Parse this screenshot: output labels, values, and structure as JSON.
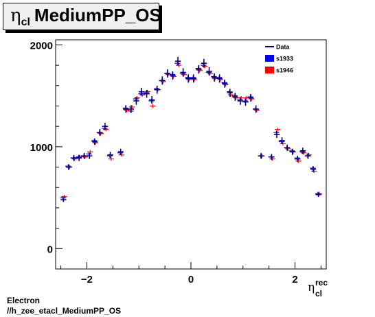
{
  "title": {
    "symbol": "η",
    "subscript": "cl",
    "text": "MediumPP_OS"
  },
  "footer": {
    "line1": "Electron",
    "line2": "//h_zee_etacl_MediumPP_OS"
  },
  "chart_data": {
    "type": "scatter",
    "xlabel": {
      "symbol": "η",
      "subscript": "cl",
      "superscript": "rec"
    },
    "ylabel": "",
    "xlim": [
      -2.6,
      2.6
    ],
    "ylim": [
      -200,
      2050
    ],
    "xticks": [
      -2,
      0,
      2
    ],
    "yticks": [
      0,
      1000,
      2000
    ],
    "grid": false,
    "legend": {
      "placement": "top-right",
      "entries": [
        {
          "label": "Data",
          "kind": "line",
          "color": "#000080"
        },
        {
          "label": "s1933",
          "kind": "box",
          "color": "#0000ff"
        },
        {
          "label": "s1946",
          "kind": "box",
          "color": "#ff0000"
        }
      ]
    },
    "x": [
      -2.45,
      -2.35,
      -2.25,
      -2.15,
      -2.05,
      -1.95,
      -1.85,
      -1.75,
      -1.65,
      -1.55,
      -1.35,
      -1.25,
      -1.15,
      -1.05,
      -0.95,
      -0.85,
      -0.75,
      -0.65,
      -0.55,
      -0.45,
      -0.35,
      -0.25,
      -0.15,
      -0.05,
      0.05,
      0.15,
      0.25,
      0.35,
      0.45,
      0.55,
      0.65,
      0.75,
      0.85,
      0.95,
      1.05,
      1.15,
      1.25,
      1.35,
      1.55,
      1.65,
      1.75,
      1.85,
      1.95,
      2.05,
      2.15,
      2.25,
      2.35,
      2.45
    ],
    "series": [
      {
        "name": "Data",
        "color": "#000080",
        "values": [
          480,
          800,
          890,
          890,
          910,
          910,
          1050,
          1140,
          1200,
          920,
          950,
          1370,
          1370,
          1450,
          1540,
          1520,
          1460,
          1560,
          1650,
          1720,
          1700,
          1840,
          1730,
          1670,
          1670,
          1760,
          1820,
          1740,
          1680,
          1670,
          1620,
          1530,
          1490,
          1450,
          1440,
          1480,
          1370,
          910,
          900,
          1120,
          1060,
          990,
          950,
          880,
          960,
          910,
          780,
          530
        ],
        "errors": [
          22,
          28,
          30,
          30,
          30,
          30,
          32,
          34,
          35,
          30,
          31,
          37,
          37,
          38,
          39,
          39,
          38,
          39,
          41,
          41,
          41,
          43,
          42,
          41,
          41,
          42,
          43,
          42,
          41,
          41,
          40,
          39,
          39,
          38,
          38,
          38,
          37,
          30,
          30,
          33,
          33,
          31,
          31,
          30,
          31,
          30,
          28,
          23
        ]
      },
      {
        "name": "s1933",
        "color": "#0000ff",
        "values": [
          500,
          810,
          890,
          900,
          910,
          930,
          1060,
          1140,
          1180,
          910,
          940,
          1380,
          1350,
          1470,
          1520,
          1530,
          1450,
          1570,
          1650,
          1720,
          1710,
          1820,
          1720,
          1680,
          1680,
          1770,
          1800,
          1730,
          1690,
          1680,
          1630,
          1540,
          1500,
          1460,
          1450,
          1490,
          1370,
          910,
          900,
          1140,
          1050,
          990,
          960,
          890,
          950,
          910,
          790,
          540
        ]
      },
      {
        "name": "s1946",
        "color": "#ff0000",
        "values": [
          510,
          800,
          880,
          900,
          900,
          950,
          1040,
          1130,
          1170,
          880,
          920,
          1360,
          1390,
          1480,
          1510,
          1540,
          1400,
          1560,
          1640,
          1710,
          1690,
          1800,
          1710,
          1660,
          1660,
          1750,
          1790,
          1720,
          1670,
          1660,
          1610,
          1510,
          1480,
          1480,
          1480,
          1470,
          1360,
          910,
          880,
          1170,
          1030,
          980,
          950,
          860,
          940,
          920,
          760,
          540
        ]
      }
    ]
  }
}
